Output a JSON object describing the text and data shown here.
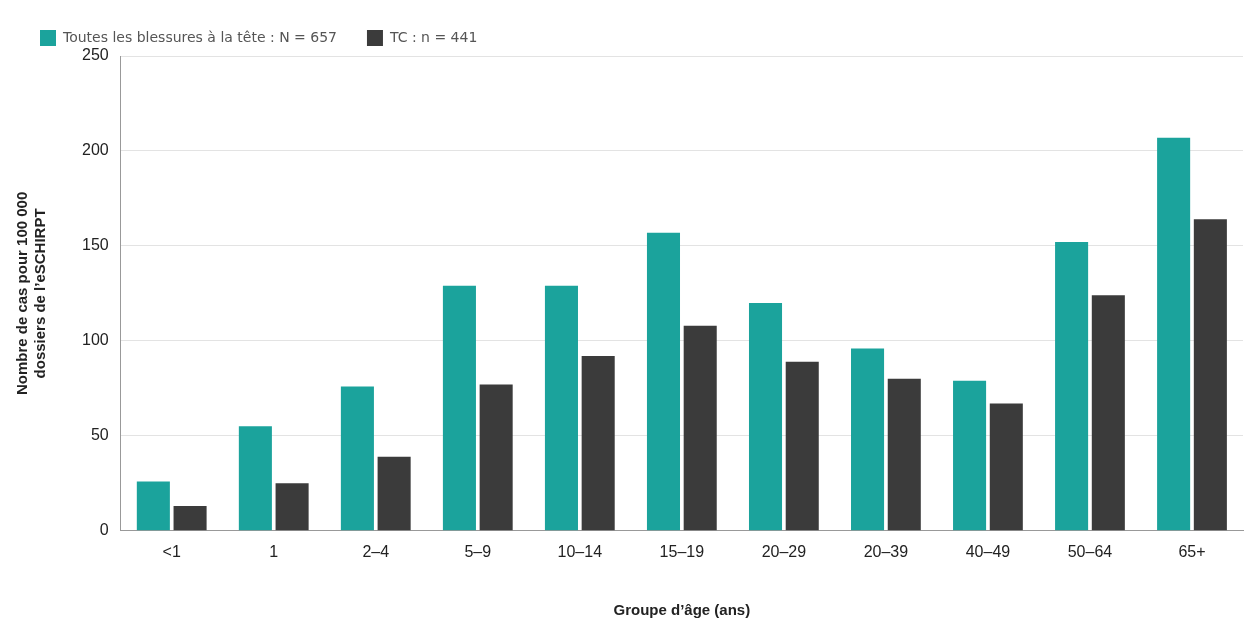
{
  "chart_data": {
    "type": "bar",
    "xlabel": "Groupe d’âge (ans)",
    "ylabel": "Nombre de cas pour 100 000 dossiers de l’eSCHIRPT",
    "categories": [
      "<1",
      "1",
      "2–4",
      "5–9",
      "10–14",
      "15–19",
      "20–29",
      "20–39",
      "40–49",
      "50–64",
      "65+"
    ],
    "series": [
      {
        "name": "Toutes les blessures à la tête : N = 657",
        "color": "#1ba39c",
        "values": [
          26,
          55,
          76,
          129,
          129,
          157,
          120,
          96,
          79,
          152,
          207
        ]
      },
      {
        "name": "TC : n = 441",
        "color": "#3b3b3b",
        "values": [
          13,
          25,
          39,
          77,
          92,
          108,
          89,
          80,
          67,
          124,
          164
        ]
      }
    ],
    "ylim": [
      0,
      250
    ],
    "yticks": [
      0,
      50,
      100,
      150,
      200,
      250
    ],
    "grid": "y",
    "legend": "top left"
  }
}
